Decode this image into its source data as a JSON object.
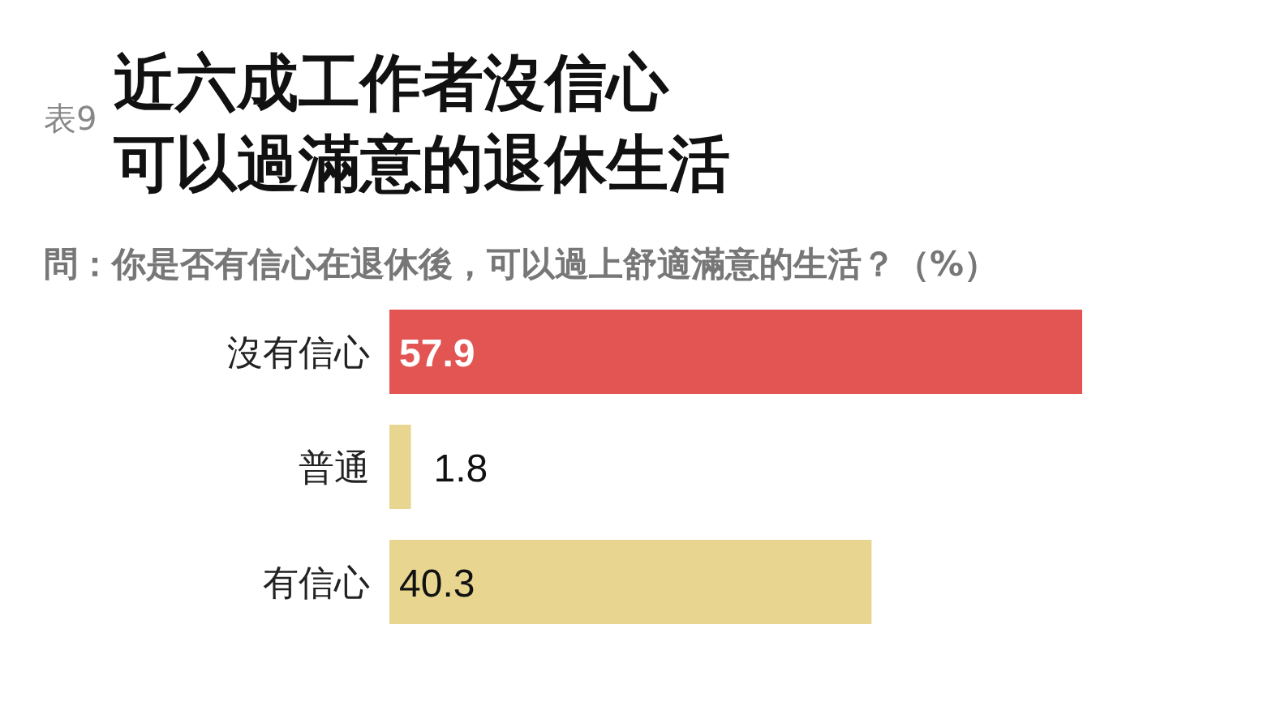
{
  "chart_data": {
    "type": "bar",
    "orientation": "horizontal",
    "title": "近六成工作者沒信心可以過滿意的退休生活",
    "subtitle": "問：你是否有信心在退休後，可以過上舒適滿意的生活？（%）",
    "annotations": [
      "表9"
    ],
    "categories": [
      "沒有信心",
      "普通",
      "有信心"
    ],
    "values": [
      57.9,
      1.8,
      40.3
    ],
    "colors": [
      "#e25553",
      "#e8d590",
      "#e8d590"
    ],
    "data_labels": true,
    "tick_labels": "y"
  }
}
